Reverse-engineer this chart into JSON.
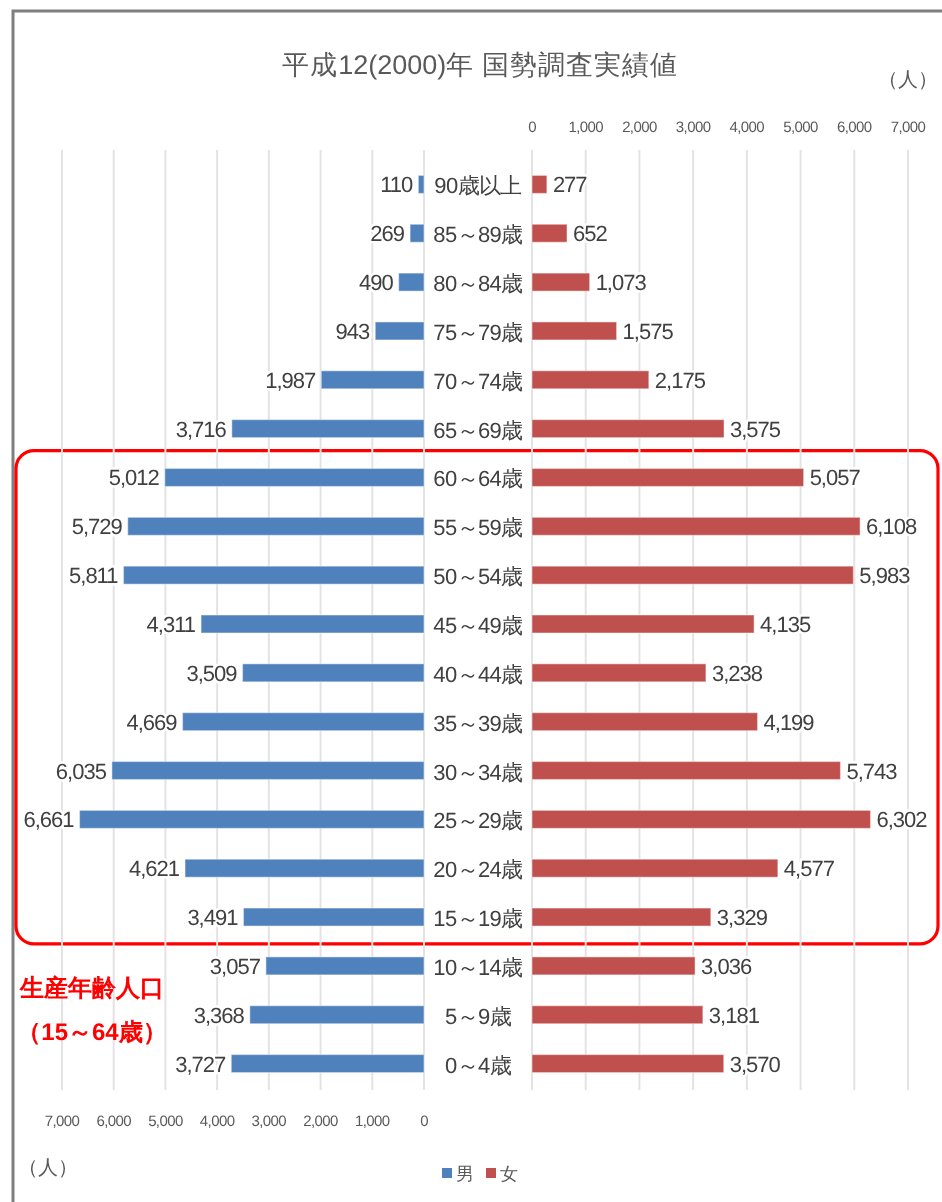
{
  "chart_data": [
    {
      "type": "bar",
      "orientation": "horizontal",
      "title": "平成12(2000)年 国勢調査実績値",
      "xlabel": "（人）",
      "categories": [
        "90歳以上",
        "85～89歳",
        "80～84歳",
        "75～79歳",
        "70～74歳",
        "65～69歳",
        "60～64歳",
        "55～59歳",
        "50～54歳",
        "45～49歳",
        "40～44歳",
        "35～39歳",
        "30～34歳",
        "25～29歳",
        "20～24歳",
        "15～19歳",
        "10～14歳",
        "5～9歳",
        "0～4歳"
      ],
      "series": [
        {
          "name": "男",
          "color": "#4f81bd",
          "values": [
            110,
            269,
            490,
            943,
            1987,
            3716,
            5012,
            5729,
            5811,
            4311,
            3509,
            4669,
            6035,
            6661,
            4621,
            3491,
            3057,
            3368,
            3727
          ],
          "value_labels": [
            "110",
            "269",
            "490",
            "943",
            "1,987",
            "3,716",
            "5,012",
            "5,729",
            "5,811",
            "4,311",
            "3,509",
            "4,669",
            "6,035",
            "6,661",
            "4,621",
            "3,491",
            "3,057",
            "3,368",
            "3,727"
          ]
        }
      ],
      "xlim": [
        7000,
        0
      ],
      "xticks": [
        {
          "value": 7000,
          "label": "7,000"
        },
        {
          "value": 6000,
          "label": "6,000"
        },
        {
          "value": 5000,
          "label": "5,000"
        },
        {
          "value": 4000,
          "label": "4,000"
        },
        {
          "value": 3000,
          "label": "3,000"
        },
        {
          "value": 2000,
          "label": "2,000"
        },
        {
          "value": 1000,
          "label": "1,000"
        },
        0
      ],
      "grid": "x",
      "legend": "bottom",
      "annotations": [
        "生産年齢人口（15～64歳）"
      ]
    },
    {
      "type": "bar",
      "orientation": "horizontal",
      "xlabel": "（人）",
      "categories": [
        "90歳以上",
        "85～89歳",
        "80～84歳",
        "75～79歳",
        "70～74歳",
        "65～69歳",
        "60～64歳",
        "55～59歳",
        "50～54歳",
        "45～49歳",
        "40～44歳",
        "35～39歳",
        "30～34歳",
        "25～29歳",
        "20～24歳",
        "15～19歳",
        "10～14歳",
        "5～9歳",
        "0～4歳"
      ],
      "series": [
        {
          "name": "女",
          "color": "#c0504d",
          "values": [
            277,
            652,
            1073,
            1575,
            2175,
            3575,
            5057,
            6108,
            5983,
            4135,
            3238,
            4199,
            5743,
            6302,
            4577,
            3329,
            3036,
            3181,
            3570
          ],
          "value_labels": [
            "277",
            "652",
            "1,073",
            "1,575",
            "2,175",
            "3,575",
            "5,057",
            "6,108",
            "5,983",
            "4,135",
            "3,238",
            "4,199",
            "5,743",
            "6,302",
            "4,577",
            "3,329",
            "3,036",
            "3,181",
            "3,570"
          ]
        }
      ],
      "xlim": [
        0,
        7000
      ],
      "xticks": [
        0,
        {
          "value": 1000,
          "label": "1,000"
        },
        {
          "value": 2000,
          "label": "2,000"
        },
        {
          "value": 3000,
          "label": "3,000"
        },
        {
          "value": 4000,
          "label": "4,000"
        },
        {
          "value": 5000,
          "label": "5,000"
        },
        {
          "value": 6000,
          "label": "6,000"
        },
        {
          "value": 7000,
          "label": "7,000"
        }
      ],
      "grid": "x",
      "legend": "bottom",
      "tick_labels": "x"
    }
  ]
}
